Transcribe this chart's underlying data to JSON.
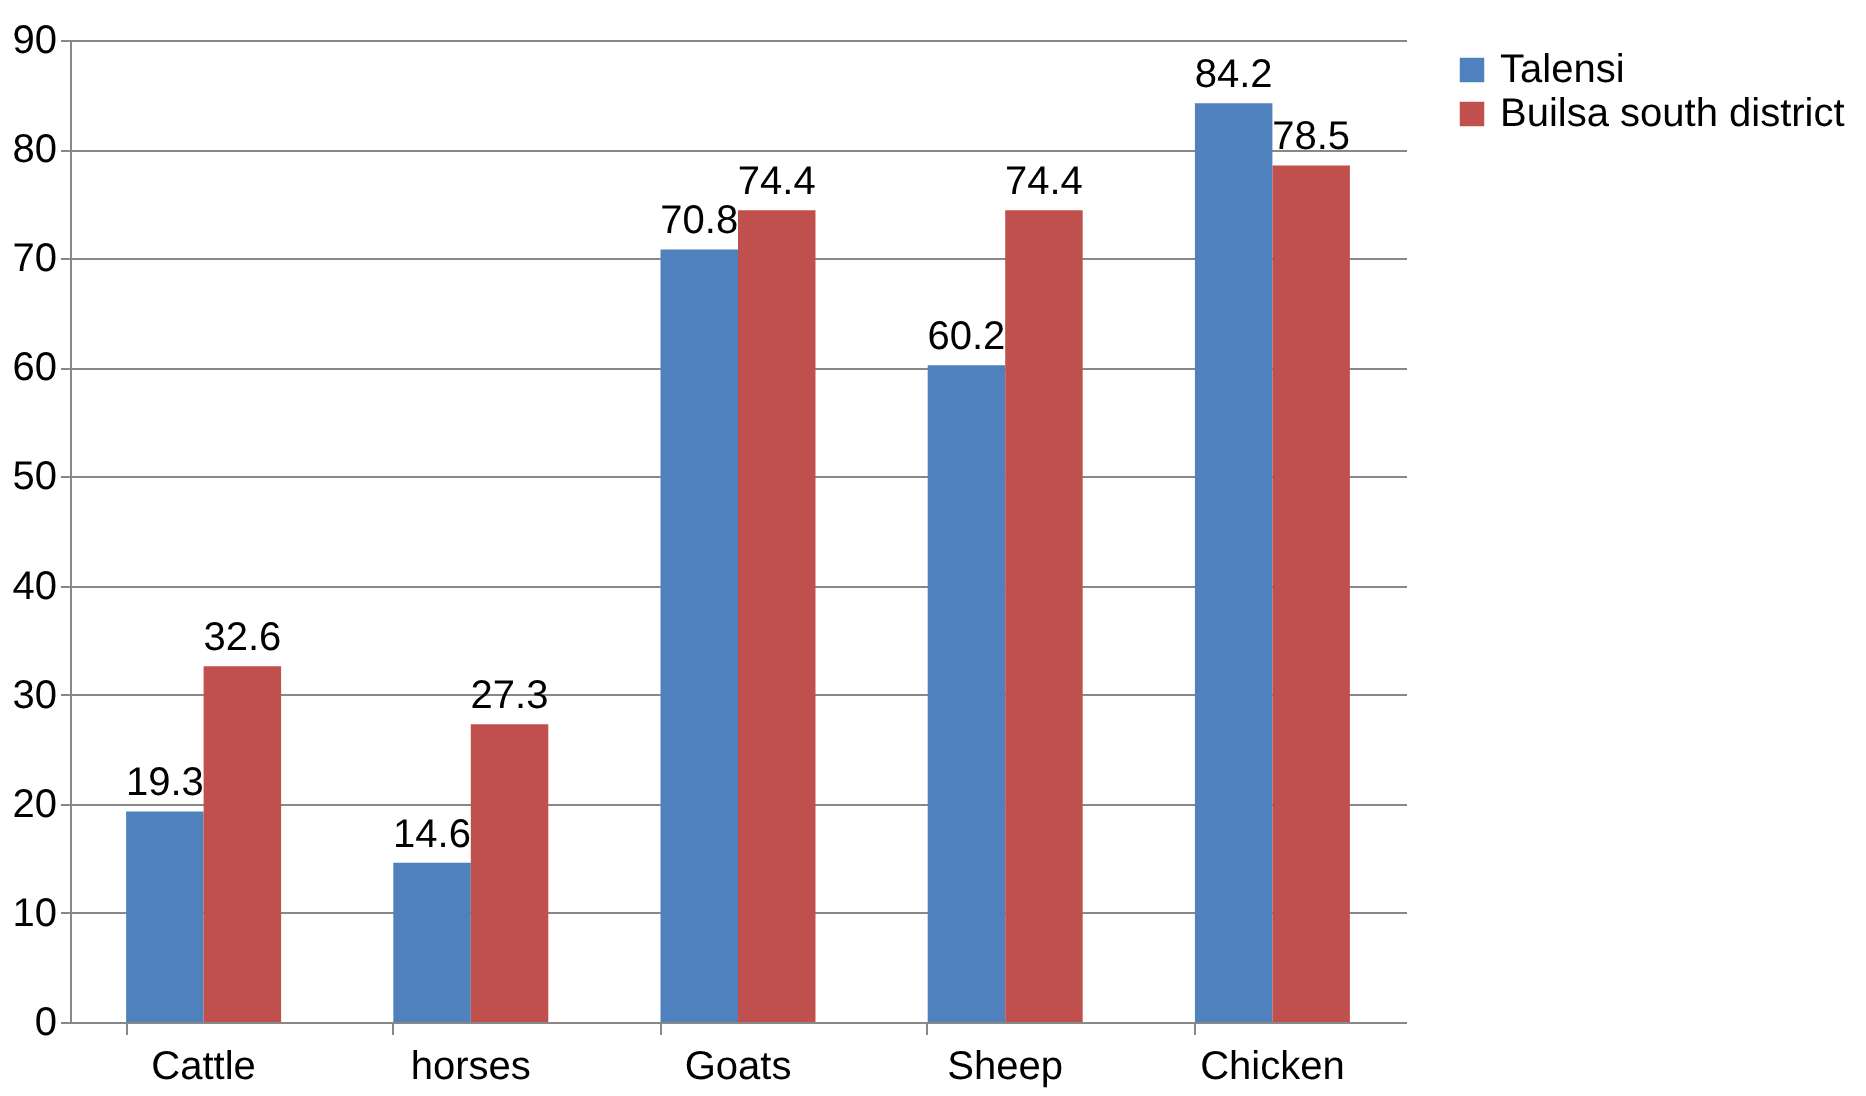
{
  "chart_data": {
    "type": "bar",
    "categories": [
      "Cattle",
      "horses",
      "Goats",
      "Sheep",
      "Chicken"
    ],
    "series": [
      {
        "name": "Talensi",
        "color": "#4f81bd",
        "values": [
          19.3,
          14.6,
          70.8,
          60.2,
          84.2
        ]
      },
      {
        "name": "Builsa south district",
        "color": "#c0504d",
        "values": [
          32.6,
          27.3,
          74.4,
          74.4,
          78.5
        ]
      }
    ],
    "ylim": [
      0,
      90
    ],
    "yticks": [
      0,
      10,
      20,
      30,
      40,
      50,
      60,
      70,
      80,
      90
    ],
    "grid": "y",
    "legend": "right",
    "data_labels": true
  }
}
